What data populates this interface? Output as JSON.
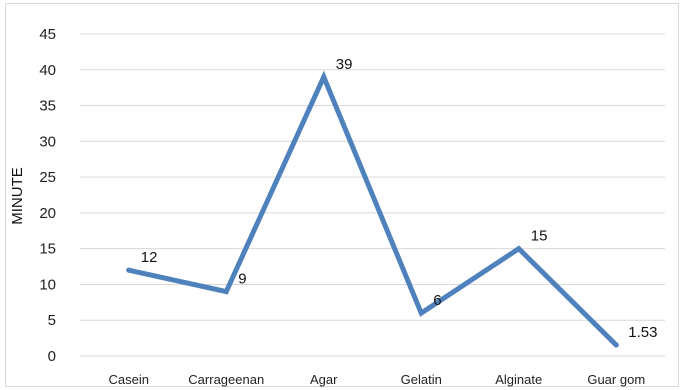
{
  "chart_data": {
    "type": "line",
    "title": "",
    "xlabel": "",
    "ylabel": "MINUTE",
    "categories": [
      "Casein",
      "Carrageenan",
      "Agar",
      "Gelatin",
      "Alginate",
      "Guar gom"
    ],
    "series": [
      {
        "values": [
          12,
          9,
          39,
          6,
          15,
          1.53
        ],
        "color": "#4f81bd"
      }
    ],
    "data_labels": [
      "12",
      "9",
      "39",
      "6",
      "15",
      "1.53"
    ],
    "y_ticks": [
      0,
      5,
      10,
      15,
      20,
      25,
      30,
      35,
      40,
      45
    ],
    "ylim": [
      0,
      45
    ],
    "grid": true,
    "legend": "none"
  }
}
